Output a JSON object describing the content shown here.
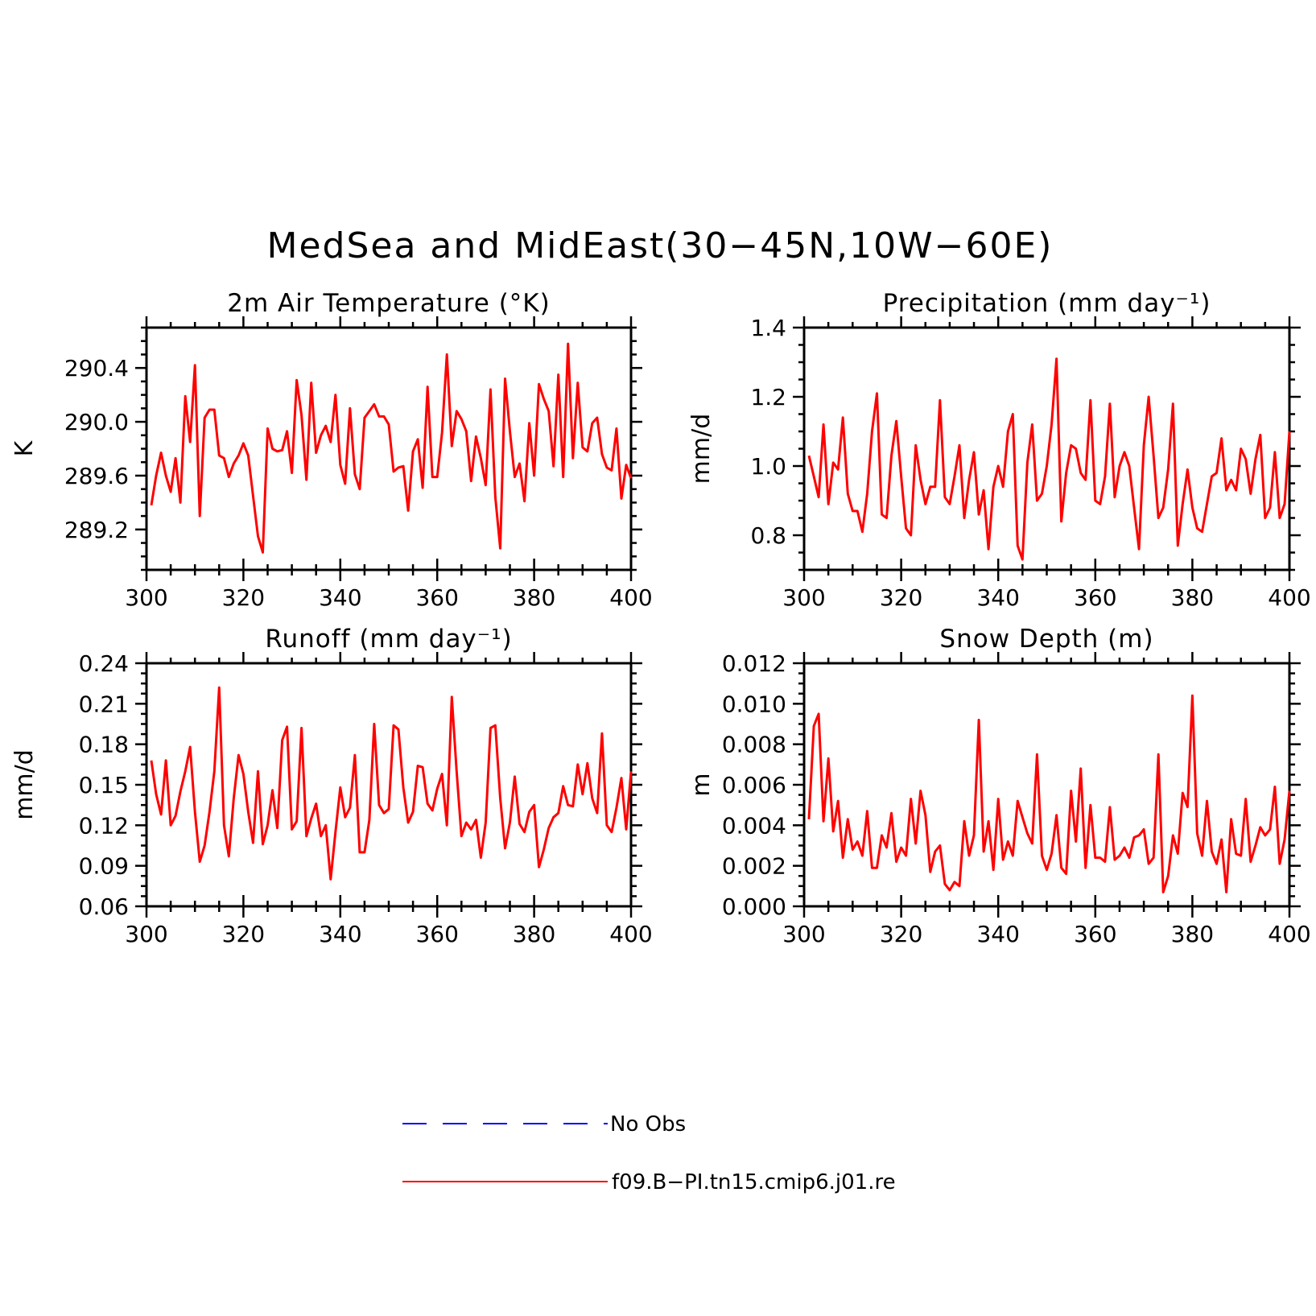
{
  "figure": {
    "title": "MedSea and MidEast(30−45N,10W−60E)"
  },
  "colors": {
    "model": "#ff0000",
    "obs": "#0000ff"
  },
  "legend": {
    "entries": [
      {
        "label": "No Obs",
        "color": "#0000ff",
        "style": "dashed"
      },
      {
        "label": "f09.B−PI.tn15.cmip6.j01.re",
        "color": "#ff0000",
        "style": "solid"
      }
    ]
  },
  "chart_data": [
    {
      "type": "line",
      "title": "2m Air Temperature (°K)",
      "ylabel": "K",
      "xlabel": "",
      "xlim": [
        300,
        400
      ],
      "ylim": [
        288.9,
        290.7
      ],
      "xticks": [
        300,
        320,
        340,
        360,
        380,
        400
      ],
      "yticks": [
        289.2,
        289.6,
        290.0,
        290.4
      ],
      "ytick_labels": [
        "289.2",
        "289.6",
        "290.0",
        "290.4"
      ],
      "grid": false,
      "series": [
        {
          "name": "f09.B−PI.tn15.cmip6.j01.re",
          "x_start": 301,
          "x_step": 1,
          "values": [
            289.38,
            289.6,
            289.77,
            289.6,
            289.48,
            289.73,
            289.4,
            290.19,
            289.85,
            290.42,
            289.3,
            290.03,
            290.09,
            290.09,
            289.75,
            289.73,
            289.59,
            289.69,
            289.75,
            289.84,
            289.75,
            289.45,
            289.15,
            289.03,
            289.95,
            289.8,
            289.78,
            289.79,
            289.93,
            289.62,
            290.31,
            290.05,
            289.57,
            290.29,
            289.77,
            289.9,
            289.97,
            289.85,
            290.2,
            289.68,
            289.54,
            290.1,
            289.61,
            289.5,
            290.03,
            290.08,
            290.13,
            290.04,
            290.04,
            289.98,
            289.63,
            289.66,
            289.67,
            289.34,
            289.78,
            289.87,
            289.51,
            290.26,
            289.59,
            289.59,
            289.92,
            290.5,
            289.82,
            290.08,
            290.02,
            289.93,
            289.56,
            289.89,
            289.73,
            289.53,
            290.24,
            289.44,
            289.06,
            290.32,
            289.93,
            289.59,
            289.69,
            289.41,
            289.99,
            289.6,
            290.28,
            290.17,
            290.08,
            289.67,
            290.35,
            289.59,
            290.58,
            289.73,
            290.29,
            289.81,
            289.78,
            289.99,
            290.03,
            289.76,
            289.66,
            289.64,
            289.95,
            289.43,
            289.68,
            289.58
          ]
        }
      ]
    },
    {
      "type": "line",
      "title": "Precipitation (mm day⁻¹)",
      "ylabel": "mm/d",
      "xlabel": "",
      "xlim": [
        300,
        400
      ],
      "ylim": [
        0.7,
        1.4
      ],
      "xticks": [
        300,
        320,
        340,
        360,
        380,
        400
      ],
      "yticks": [
        0.8,
        1.0,
        1.2,
        1.4
      ],
      "ytick_labels": [
        "0.8",
        "1.0",
        "1.2",
        "1.4"
      ],
      "grid": false,
      "series": [
        {
          "name": "f09.B−PI.tn15.cmip6.j01.re",
          "x_start": 301,
          "x_step": 1,
          "values": [
            1.03,
            0.97,
            0.91,
            1.12,
            0.89,
            1.01,
            0.99,
            1.14,
            0.92,
            0.87,
            0.87,
            0.81,
            0.92,
            1.1,
            1.21,
            0.86,
            0.85,
            1.03,
            1.13,
            0.97,
            0.82,
            0.8,
            1.06,
            0.96,
            0.89,
            0.94,
            0.94,
            1.19,
            0.91,
            0.89,
            0.97,
            1.06,
            0.85,
            0.96,
            1.04,
            0.86,
            0.93,
            0.76,
            0.94,
            1.0,
            0.94,
            1.1,
            1.15,
            0.77,
            0.73,
            1.01,
            1.12,
            0.9,
            0.92,
            1.0,
            1.12,
            1.31,
            0.84,
            0.98,
            1.06,
            1.05,
            0.98,
            0.96,
            1.19,
            0.9,
            0.89,
            0.97,
            1.18,
            0.91,
            1.0,
            1.04,
            1.0,
            0.88,
            0.76,
            1.06,
            1.2,
            1.03,
            0.85,
            0.88,
            0.99,
            1.18,
            0.77,
            0.89,
            0.99,
            0.88,
            0.82,
            0.81,
            0.89,
            0.97,
            0.98,
            1.08,
            0.93,
            0.96,
            0.93,
            1.05,
            1.02,
            0.92,
            1.02,
            1.09,
            0.85,
            0.88,
            1.04,
            0.85,
            0.89,
            1.1
          ]
        }
      ]
    },
    {
      "type": "line",
      "title": "Runoff (mm day⁻¹)",
      "ylabel": "mm/d",
      "xlabel": "",
      "xlim": [
        300,
        400
      ],
      "ylim": [
        0.06,
        0.24
      ],
      "xticks": [
        300,
        320,
        340,
        360,
        380,
        400
      ],
      "yticks": [
        0.06,
        0.09,
        0.12,
        0.15,
        0.18,
        0.21,
        0.24
      ],
      "ytick_labels": [
        "0.06",
        "0.09",
        "0.12",
        "0.15",
        "0.18",
        "0.21",
        "0.24"
      ],
      "grid": false,
      "series": [
        {
          "name": "f09.B−PI.tn15.cmip6.j01.re",
          "x_start": 301,
          "x_step": 1,
          "values": [
            0.168,
            0.143,
            0.128,
            0.168,
            0.12,
            0.127,
            0.145,
            0.16,
            0.178,
            0.13,
            0.093,
            0.105,
            0.13,
            0.16,
            0.222,
            0.12,
            0.097,
            0.14,
            0.172,
            0.158,
            0.13,
            0.107,
            0.16,
            0.106,
            0.12,
            0.146,
            0.118,
            0.183,
            0.193,
            0.117,
            0.123,
            0.192,
            0.112,
            0.125,
            0.136,
            0.112,
            0.12,
            0.08,
            0.115,
            0.148,
            0.126,
            0.133,
            0.172,
            0.1,
            0.1,
            0.124,
            0.195,
            0.135,
            0.129,
            0.132,
            0.194,
            0.191,
            0.148,
            0.122,
            0.13,
            0.164,
            0.163,
            0.136,
            0.131,
            0.147,
            0.158,
            0.12,
            0.215,
            0.16,
            0.112,
            0.122,
            0.117,
            0.124,
            0.096,
            0.122,
            0.192,
            0.194,
            0.14,
            0.103,
            0.122,
            0.156,
            0.121,
            0.115,
            0.13,
            0.135,
            0.089,
            0.102,
            0.118,
            0.126,
            0.129,
            0.149,
            0.135,
            0.134,
            0.165,
            0.143,
            0.166,
            0.14,
            0.129,
            0.188,
            0.12,
            0.115,
            0.133,
            0.155,
            0.117,
            0.16
          ]
        }
      ]
    },
    {
      "type": "line",
      "title": "Snow Depth (m)",
      "ylabel": "m",
      "xlabel": "",
      "xlim": [
        300,
        400
      ],
      "ylim": [
        0.0,
        0.012
      ],
      "xticks": [
        300,
        320,
        340,
        360,
        380,
        400
      ],
      "yticks": [
        0.0,
        0.002,
        0.004,
        0.006,
        0.008,
        0.01,
        0.012
      ],
      "ytick_labels": [
        "0.000",
        "0.002",
        "0.004",
        "0.006",
        "0.008",
        "0.010",
        "0.012"
      ],
      "grid": false,
      "series": [
        {
          "name": "f09.B−PI.tn15.cmip6.j01.re",
          "x_start": 301,
          "x_step": 1,
          "values": [
            0.0043,
            0.0089,
            0.0095,
            0.0042,
            0.0073,
            0.0037,
            0.0052,
            0.0024,
            0.0043,
            0.0028,
            0.0032,
            0.0025,
            0.0047,
            0.0019,
            0.0019,
            0.0035,
            0.0029,
            0.0046,
            0.0022,
            0.0029,
            0.0025,
            0.0053,
            0.0031,
            0.0057,
            0.0045,
            0.0017,
            0.0027,
            0.003,
            0.0011,
            0.0008,
            0.0012,
            0.001,
            0.0042,
            0.0025,
            0.0035,
            0.0092,
            0.0027,
            0.0042,
            0.0018,
            0.0053,
            0.0023,
            0.0032,
            0.0025,
            0.0052,
            0.0044,
            0.0036,
            0.0031,
            0.0075,
            0.0025,
            0.0018,
            0.0026,
            0.0045,
            0.0019,
            0.0016,
            0.0057,
            0.0032,
            0.0068,
            0.0019,
            0.005,
            0.0024,
            0.0024,
            0.0022,
            0.0049,
            0.0023,
            0.0025,
            0.0029,
            0.0024,
            0.0034,
            0.0035,
            0.0038,
            0.0021,
            0.0024,
            0.0075,
            0.0007,
            0.0015,
            0.0035,
            0.0026,
            0.0056,
            0.0049,
            0.0104,
            0.0036,
            0.0025,
            0.0052,
            0.0027,
            0.0021,
            0.0033,
            0.0007,
            0.0043,
            0.0026,
            0.0025,
            0.0053,
            0.0022,
            0.003,
            0.0039,
            0.0035,
            0.0038,
            0.0059,
            0.0021,
            0.0033,
            0.0057
          ]
        }
      ]
    }
  ]
}
